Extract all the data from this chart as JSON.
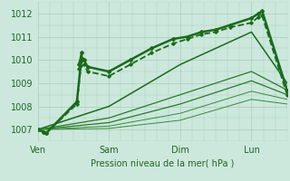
{
  "xlabel": "Pression niveau de la mer( hPa )",
  "bg_color": "#cce8dd",
  "grid_color": "#aaccbb",
  "xlim": [
    0,
    3.5
  ],
  "ylim": [
    1006.5,
    1012.5
  ],
  "yticks": [
    1007,
    1008,
    1009,
    1010,
    1011,
    1012
  ],
  "xtick_labels": [
    "Ven",
    "Sam",
    "Dim",
    "Lun"
  ],
  "xtick_positions": [
    0.0,
    1.0,
    2.0,
    3.0
  ],
  "series": [
    {
      "x": [
        0.0,
        0.08,
        0.12,
        0.55,
        0.62,
        0.58,
        0.65,
        0.7,
        1.0,
        1.3,
        1.6,
        1.9,
        2.1,
        2.3,
        2.5,
        2.7,
        3.0,
        3.1,
        3.15,
        3.5
      ],
      "y": [
        1007.0,
        1006.9,
        1006.85,
        1008.2,
        1010.3,
        1009.8,
        1010.0,
        1009.7,
        1009.5,
        1010.0,
        1010.5,
        1010.9,
        1011.0,
        1011.2,
        1011.3,
        1011.5,
        1011.8,
        1012.0,
        1012.1,
        1008.7
      ],
      "color": "#1a6b1a",
      "lw": 1.8,
      "marker": "D",
      "ms": 2.0,
      "dashed": false
    },
    {
      "x": [
        0.0,
        0.08,
        0.12,
        0.55,
        0.62,
        0.58,
        0.65,
        0.7,
        1.0,
        1.3,
        1.6,
        1.9,
        2.1,
        2.3,
        2.5,
        2.7,
        3.0,
        3.1,
        3.15,
        3.5
      ],
      "y": [
        1007.0,
        1006.9,
        1006.85,
        1008.1,
        1010.1,
        1009.6,
        1009.8,
        1009.5,
        1009.3,
        1009.8,
        1010.3,
        1010.7,
        1010.9,
        1011.1,
        1011.2,
        1011.4,
        1011.6,
        1011.85,
        1011.9,
        1008.5
      ],
      "color": "#1a6b1a",
      "lw": 1.3,
      "marker": "D",
      "ms": 1.8,
      "dashed": true
    },
    {
      "x": [
        0.0,
        1.0,
        2.0,
        3.0,
        3.5
      ],
      "y": [
        1007.0,
        1008.0,
        1009.8,
        1011.2,
        1009.0
      ],
      "color": "#1a6b1a",
      "lw": 1.1,
      "marker": null,
      "ms": 0,
      "dashed": false
    },
    {
      "x": [
        0.0,
        1.0,
        2.0,
        3.0,
        3.5
      ],
      "y": [
        1007.0,
        1007.5,
        1008.5,
        1009.5,
        1008.7
      ],
      "color": "#2a7a2a",
      "lw": 0.9,
      "marker": null,
      "ms": 0,
      "dashed": false
    },
    {
      "x": [
        0.0,
        1.0,
        2.0,
        3.0,
        3.5
      ],
      "y": [
        1007.0,
        1007.3,
        1008.1,
        1009.1,
        1008.5
      ],
      "color": "#2a7a2a",
      "lw": 0.9,
      "marker": null,
      "ms": 0,
      "dashed": false
    },
    {
      "x": [
        0.0,
        1.0,
        2.0,
        3.0,
        3.5
      ],
      "y": [
        1007.0,
        1007.15,
        1007.7,
        1008.65,
        1008.3
      ],
      "color": "#3a8a3a",
      "lw": 0.7,
      "marker": null,
      "ms": 0,
      "dashed": false
    },
    {
      "x": [
        0.0,
        1.0,
        2.0,
        3.0,
        3.5
      ],
      "y": [
        1007.0,
        1007.05,
        1007.4,
        1008.3,
        1008.1
      ],
      "color": "#3a8a3a",
      "lw": 0.7,
      "marker": null,
      "ms": 0,
      "dashed": false
    }
  ]
}
